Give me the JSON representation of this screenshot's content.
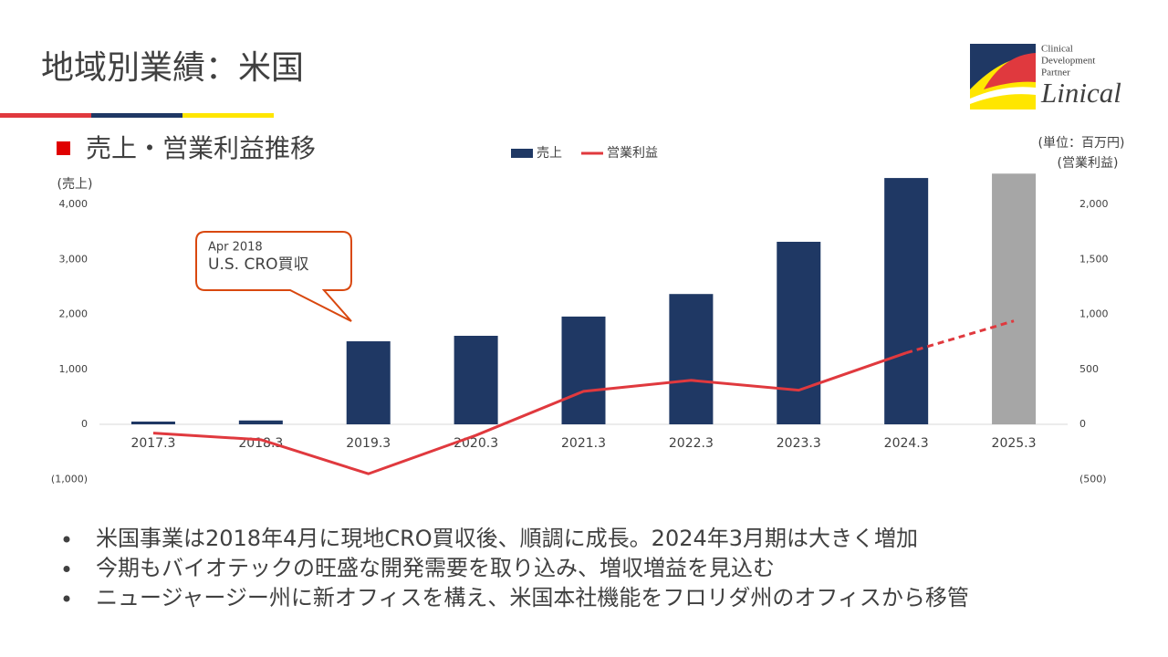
{
  "slide": {
    "title": "地域別業績：米国",
    "subtitle": "売上・営業利益推移",
    "bullets": [
      "米国事業は2018年4月に現地CRO買収後、順調に成長。2024年3月期は大きく増加",
      "今期もバイオテックの旺盛な開発需要を取り込み、増収増益を見込む",
      "ニュージャージー州に新オフィスを構え、米国本社機能をフロリダ州のオフィスから移管"
    ],
    "logo": {
      "lines": [
        "Clinical",
        "Development",
        "Partner"
      ],
      "name": "Linical"
    }
  },
  "chart_data": {
    "type": "bar",
    "unit": "(単位：百万円)",
    "y_label": "(売上)",
    "y2_label": "(営業利益)",
    "annotation": {
      "date": "Apr 2018",
      "text": "U.S. CRO買収"
    },
    "categories": [
      "2017.3",
      "2018.3",
      "2019.3",
      "2020.3",
      "2021.3",
      "2022.3",
      "2023.3",
      "2024.3",
      "2025.3"
    ],
    "series": [
      {
        "name": "売上",
        "type": "bar",
        "color": "#1f3864",
        "colors": [
          "#1f3864",
          "#1f3864",
          "#1f3864",
          "#1f3864",
          "#1f3864",
          "#1f3864",
          "#1f3864",
          "#1f3864",
          "#a6a6a6"
        ],
        "values": [
          50,
          70,
          1510,
          1610,
          1960,
          2370,
          3320,
          4480,
          4560
        ]
      },
      {
        "name": "営業利益",
        "type": "line",
        "axis": "y2",
        "color": "#e0393e",
        "dash_from": 7,
        "values": [
          -80,
          -140,
          -450,
          -100,
          300,
          400,
          310,
          650,
          940
        ]
      }
    ],
    "ylim": [
      -1000,
      4600
    ],
    "yticks": [
      {
        "value": -1000,
        "label": "(1,000)"
      },
      0,
      {
        "value": 1000,
        "label": "1,000"
      },
      {
        "value": 2000,
        "label": "2,000"
      },
      {
        "value": 3000,
        "label": "3,000"
      },
      {
        "value": 4000,
        "label": "4,000"
      }
    ],
    "y2lim": [
      -500,
      2300
    ],
    "y2ticks": [
      {
        "value": -500,
        "label": "(500)"
      },
      0,
      500,
      {
        "value": 1000,
        "label": "1,000"
      },
      {
        "value": 1500,
        "label": "1,500"
      },
      {
        "value": 2000,
        "label": "2,000"
      }
    ],
    "negative_color": "#c00000",
    "grid": false
  }
}
